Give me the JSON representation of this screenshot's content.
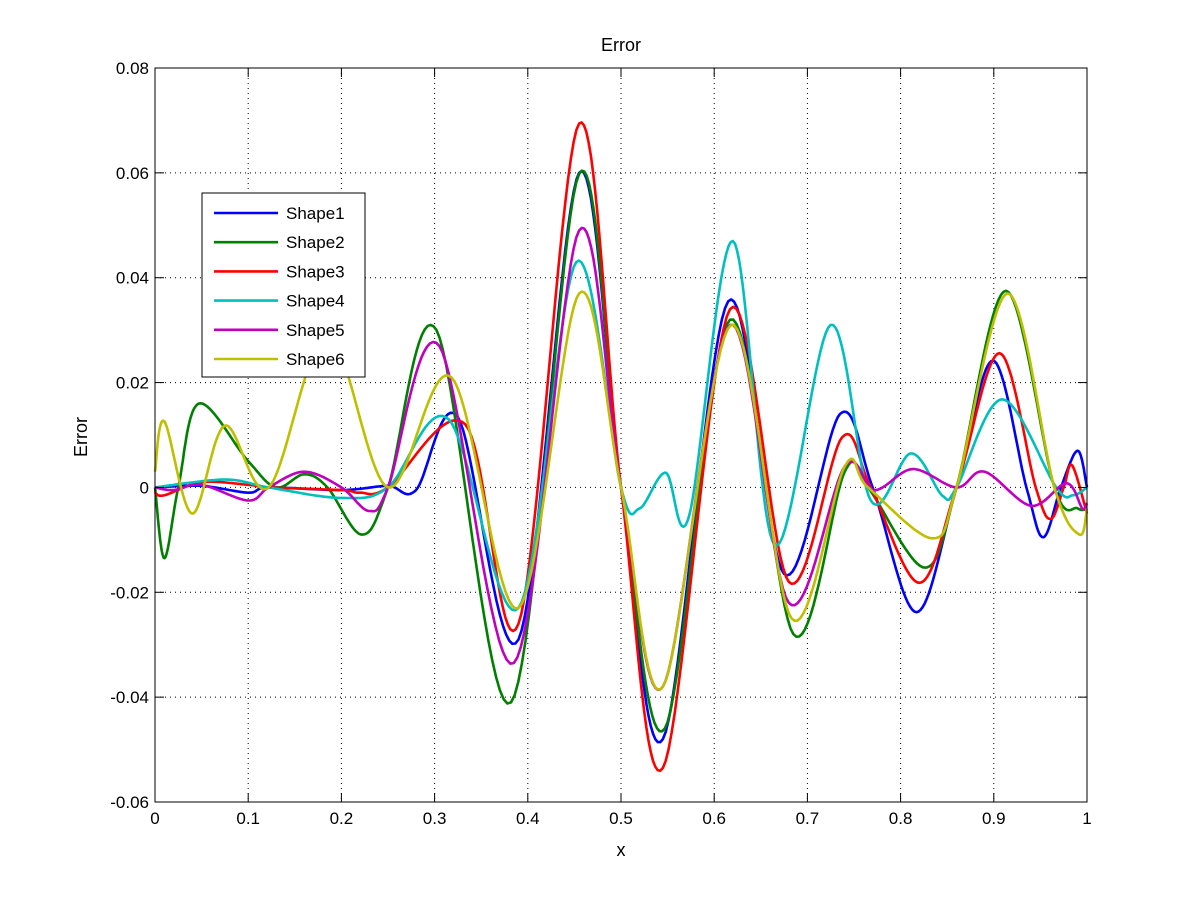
{
  "chart_data": {
    "type": "line",
    "title": "Error",
    "xlabel": "x",
    "ylabel": "Error",
    "xlim": [
      0,
      1
    ],
    "ylim": [
      -0.06,
      0.08
    ],
    "xticks": [
      "0",
      "0.1",
      "0.2",
      "0.3",
      "0.4",
      "0.5",
      "0.6",
      "0.7",
      "0.8",
      "0.9",
      "1"
    ],
    "yticks": [
      "-0.06",
      "-0.04",
      "-0.02",
      "0",
      "0.02",
      "0.04",
      "0.06",
      "0.08"
    ],
    "grid": true,
    "legend_position": "upper-left",
    "series": [
      {
        "name": "Shape1",
        "color": "#0000ff",
        "points": [
          [
            0,
            0
          ],
          [
            0.05,
            0.0003
          ],
          [
            0.1,
            -0.001
          ],
          [
            0.122,
            0
          ],
          [
            0.2,
            -0.0005
          ],
          [
            0.25,
            0.0003
          ],
          [
            0.28,
            -0.0005
          ],
          [
            0.325,
            0.0134
          ],
          [
            0.39,
            -0.029
          ],
          [
            0.455,
            0.06
          ],
          [
            0.5,
            0
          ],
          [
            0.545,
            -0.048
          ],
          [
            0.615,
            0.0355
          ],
          [
            0.675,
            -0.0165
          ],
          [
            0.735,
            0.014
          ],
          [
            0.77,
            0
          ],
          [
            0.817,
            -0.0238
          ],
          [
            0.86,
            0
          ],
          [
            0.899,
            0.0242
          ],
          [
            0.935,
            0
          ],
          [
            0.953,
            -0.0095
          ],
          [
            0.972,
            0
          ],
          [
            0.99,
            0.007
          ],
          [
            1,
            0
          ]
        ]
      },
      {
        "name": "Shape2",
        "color": "#008000",
        "points": [
          [
            0,
            0
          ],
          [
            0.01,
            -0.0135
          ],
          [
            0.025,
            0
          ],
          [
            0.047,
            0.016
          ],
          [
            0.1,
            0.005
          ],
          [
            0.13,
            0
          ],
          [
            0.16,
            0.0025
          ],
          [
            0.185,
            0
          ],
          [
            0.222,
            -0.009
          ],
          [
            0.25,
            0
          ],
          [
            0.302,
            0.03
          ],
          [
            0.382,
            -0.041
          ],
          [
            0.455,
            0.0598
          ],
          [
            0.5,
            0
          ],
          [
            0.547,
            -0.046
          ],
          [
            0.617,
            0.032
          ],
          [
            0.685,
            -0.028
          ],
          [
            0.74,
            0.003
          ],
          [
            0.765,
            0
          ],
          [
            0.826,
            -0.0153
          ],
          [
            0.86,
            0
          ],
          [
            0.913,
            0.0375
          ],
          [
            0.965,
            0
          ],
          [
            0.99,
            -0.004
          ],
          [
            1,
            -0.004
          ]
        ]
      },
      {
        "name": "Shape3",
        "color": "#ff0000",
        "points": [
          [
            0,
            -0.001
          ],
          [
            0.01,
            -0.0015
          ],
          [
            0.05,
            0.001
          ],
          [
            0.1,
            0.0005
          ],
          [
            0.122,
            0
          ],
          [
            0.2,
            -0.0005
          ],
          [
            0.22,
            -0.001
          ],
          [
            0.25,
            0
          ],
          [
            0.333,
            0.012
          ],
          [
            0.39,
            -0.026
          ],
          [
            0.455,
            0.0694
          ],
          [
            0.5,
            0
          ],
          [
            0.545,
            -0.0535
          ],
          [
            0.617,
            0.034
          ],
          [
            0.68,
            -0.018
          ],
          [
            0.737,
            0.0095
          ],
          [
            0.768,
            0
          ],
          [
            0.82,
            -0.0182
          ],
          [
            0.86,
            0
          ],
          [
            0.906,
            0.0256
          ],
          [
            0.945,
            0
          ],
          [
            0.961,
            -0.006
          ],
          [
            0.975,
            0
          ],
          [
            0.984,
            0.0042
          ],
          [
            1,
            -0.005
          ]
        ]
      },
      {
        "name": "Shape4",
        "color": "#00bfbf",
        "points": [
          [
            0,
            0
          ],
          [
            0.075,
            0.0015
          ],
          [
            0.122,
            0
          ],
          [
            0.2,
            -0.002
          ],
          [
            0.25,
            0
          ],
          [
            0.315,
            0.013
          ],
          [
            0.39,
            -0.023
          ],
          [
            0.452,
            0.043
          ],
          [
            0.5,
            0
          ],
          [
            0.52,
            -0.004
          ],
          [
            0.548,
            0.0028
          ],
          [
            0.573,
            -0.0055
          ],
          [
            0.62,
            0.047
          ],
          [
            0.665,
            -0.011
          ],
          [
            0.725,
            0.031
          ],
          [
            0.768,
            -0.0025
          ],
          [
            0.811,
            0.0065
          ],
          [
            0.845,
            -0.0016
          ],
          [
            0.86,
            0
          ],
          [
            0.909,
            0.0168
          ],
          [
            0.967,
            0
          ],
          [
            0.985,
            -0.0015
          ],
          [
            1,
            0
          ]
        ]
      },
      {
        "name": "Shape5",
        "color": "#bf00bf",
        "points": [
          [
            0,
            0
          ],
          [
            0.02,
            -0.0005
          ],
          [
            0.05,
            0.0005
          ],
          [
            0.1,
            -0.0025
          ],
          [
            0.122,
            0
          ],
          [
            0.16,
            0.003
          ],
          [
            0.2,
            0
          ],
          [
            0.23,
            -0.0045
          ],
          [
            0.25,
            0
          ],
          [
            0.305,
            0.027
          ],
          [
            0.385,
            -0.0335
          ],
          [
            0.455,
            0.049
          ],
          [
            0.5,
            0
          ],
          [
            0.545,
            -0.038
          ],
          [
            0.617,
            0.031
          ],
          [
            0.68,
            -0.022
          ],
          [
            0.74,
            0.004
          ],
          [
            0.772,
            -0.0005
          ],
          [
            0.813,
            0.0035
          ],
          [
            0.86,
            0
          ],
          [
            0.89,
            0.003
          ],
          [
            0.94,
            -0.0035
          ],
          [
            0.978,
            0.0008
          ],
          [
            0.995,
            -0.004
          ],
          [
            1,
            -0.003
          ]
        ]
      },
      {
        "name": "Shape6",
        "color": "#bfbf00",
        "points": [
          [
            0,
            0.003
          ],
          [
            0.01,
            0.0126
          ],
          [
            0.04,
            -0.005
          ],
          [
            0.075,
            0.0118
          ],
          [
            0.122,
            0
          ],
          [
            0.185,
            0.029
          ],
          [
            0.25,
            0
          ],
          [
            0.318,
            0.021
          ],
          [
            0.39,
            -0.023
          ],
          [
            0.455,
            0.037
          ],
          [
            0.5,
            0
          ],
          [
            0.545,
            -0.038
          ],
          [
            0.618,
            0.031
          ],
          [
            0.683,
            -0.025
          ],
          [
            0.74,
            0.004
          ],
          [
            0.765,
            0
          ],
          [
            0.834,
            -0.0097
          ],
          [
            0.86,
            0
          ],
          [
            0.915,
            0.037
          ],
          [
            0.965,
            0
          ],
          [
            0.992,
            -0.009
          ],
          [
            1,
            -0.004
          ]
        ]
      }
    ]
  }
}
